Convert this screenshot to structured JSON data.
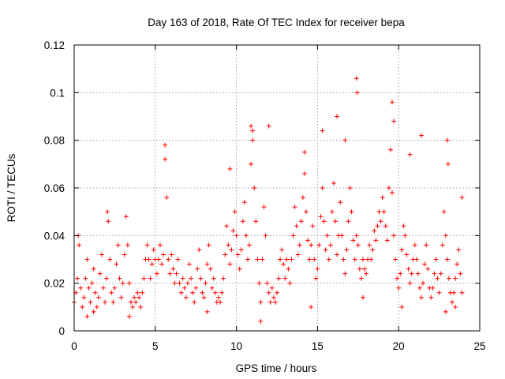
{
  "chart_data": {
    "type": "scatter",
    "title": "Day 163 of 2018, Rate Of TEC Index for receiver bepa",
    "xlabel": "GPS time / hours",
    "ylabel": "ROTI / TECUs",
    "xlim": [
      0,
      25
    ],
    "ylim": [
      0,
      0.12
    ],
    "xticks": [
      0,
      5,
      10,
      15,
      20,
      25
    ],
    "xtick_labels": [
      "0",
      "5",
      "10",
      "15",
      "20",
      "25"
    ],
    "yticks": [
      0,
      0.02,
      0.04,
      0.06,
      0.08,
      0.1,
      0.12
    ],
    "ytick_labels": [
      "0",
      "0.02",
      "0.04",
      "0.06",
      "0.08",
      "0.1",
      "0.12"
    ],
    "grid": true,
    "marker": "+",
    "color": "#ff0000",
    "series": [
      {
        "name": "ROTI",
        "points": [
          [
            0.0,
            0.012
          ],
          [
            0.1,
            0.016
          ],
          [
            0.2,
            0.022
          ],
          [
            0.3,
            0.036
          ],
          [
            0.4,
            0.018
          ],
          [
            0.5,
            0.01
          ],
          [
            0.6,
            0.014
          ],
          [
            0.7,
            0.022
          ],
          [
            0.8,
            0.03
          ],
          [
            0.9,
            0.018
          ],
          [
            1.0,
            0.012
          ],
          [
            1.1,
            0.02
          ],
          [
            1.2,
            0.026
          ],
          [
            1.3,
            0.016
          ],
          [
            1.4,
            0.01
          ],
          [
            1.5,
            0.014
          ],
          [
            1.6,
            0.024
          ],
          [
            1.7,
            0.032
          ],
          [
            1.8,
            0.018
          ],
          [
            1.9,
            0.012
          ],
          [
            2.0,
            0.022
          ],
          [
            2.1,
            0.046
          ],
          [
            2.2,
            0.03
          ],
          [
            2.3,
            0.016
          ],
          [
            2.4,
            0.012
          ],
          [
            2.5,
            0.018
          ],
          [
            2.6,
            0.028
          ],
          [
            2.7,
            0.036
          ],
          [
            2.8,
            0.022
          ],
          [
            2.9,
            0.014
          ],
          [
            3.0,
            0.02
          ],
          [
            3.1,
            0.032
          ],
          [
            3.2,
            0.048
          ],
          [
            3.3,
            0.036
          ],
          [
            3.4,
            0.02
          ],
          [
            3.5,
            0.012
          ],
          [
            3.6,
            0.01
          ],
          [
            3.7,
            0.014
          ],
          [
            3.8,
            0.012
          ],
          [
            3.9,
            0.016
          ],
          [
            4.0,
            0.014
          ],
          [
            4.1,
            0.01
          ],
          [
            4.2,
            0.016
          ],
          [
            4.3,
            0.022
          ],
          [
            4.4,
            0.03
          ],
          [
            4.5,
            0.036
          ],
          [
            4.6,
            0.03
          ],
          [
            4.7,
            0.022
          ],
          [
            4.8,
            0.028
          ],
          [
            4.9,
            0.034
          ],
          [
            5.0,
            0.03
          ],
          [
            5.1,
            0.024
          ],
          [
            5.2,
            0.03
          ],
          [
            5.3,
            0.036
          ],
          [
            5.4,
            0.028
          ],
          [
            5.5,
            0.032
          ],
          [
            5.6,
            0.072
          ],
          [
            5.7,
            0.056
          ],
          [
            5.8,
            0.03
          ],
          [
            5.9,
            0.024
          ],
          [
            6.0,
            0.032
          ],
          [
            6.1,
            0.026
          ],
          [
            6.2,
            0.02
          ],
          [
            6.3,
            0.024
          ],
          [
            6.4,
            0.03
          ],
          [
            6.5,
            0.02
          ],
          [
            6.6,
            0.016
          ],
          [
            6.7,
            0.022
          ],
          [
            6.8,
            0.018
          ],
          [
            6.9,
            0.014
          ],
          [
            7.0,
            0.02
          ],
          [
            7.1,
            0.028
          ],
          [
            7.2,
            0.022
          ],
          [
            7.3,
            0.016
          ],
          [
            7.4,
            0.012
          ],
          [
            7.5,
            0.018
          ],
          [
            7.6,
            0.026
          ],
          [
            7.7,
            0.034
          ],
          [
            7.8,
            0.022
          ],
          [
            7.9,
            0.016
          ],
          [
            8.0,
            0.014
          ],
          [
            8.1,
            0.02
          ],
          [
            8.2,
            0.028
          ],
          [
            8.3,
            0.036
          ],
          [
            8.4,
            0.026
          ],
          [
            8.5,
            0.018
          ],
          [
            8.6,
            0.022
          ],
          [
            8.7,
            0.016
          ],
          [
            8.8,
            0.012
          ],
          [
            8.9,
            0.014
          ],
          [
            9.0,
            0.012
          ],
          [
            9.1,
            0.016
          ],
          [
            9.2,
            0.022
          ],
          [
            9.3,
            0.032
          ],
          [
            9.4,
            0.044
          ],
          [
            9.5,
            0.036
          ],
          [
            9.6,
            0.028
          ],
          [
            9.7,
            0.034
          ],
          [
            9.8,
            0.042
          ],
          [
            9.9,
            0.05
          ],
          [
            10.0,
            0.04
          ],
          [
            10.1,
            0.032
          ],
          [
            10.2,
            0.026
          ],
          [
            10.3,
            0.034
          ],
          [
            10.4,
            0.046
          ],
          [
            10.5,
            0.054
          ],
          [
            10.6,
            0.04
          ],
          [
            10.7,
            0.03
          ],
          [
            10.8,
            0.036
          ],
          [
            10.9,
            0.07
          ],
          [
            11.0,
            0.08
          ],
          [
            11.1,
            0.06
          ],
          [
            11.2,
            0.046
          ],
          [
            11.3,
            0.03
          ],
          [
            11.4,
            0.02
          ],
          [
            11.5,
            0.012
          ],
          [
            11.6,
            0.03
          ],
          [
            11.7,
            0.052
          ],
          [
            11.8,
            0.04
          ],
          [
            11.9,
            0.02
          ],
          [
            12.0,
            0.016
          ],
          [
            12.1,
            0.012
          ],
          [
            12.2,
            0.018
          ],
          [
            12.3,
            0.014
          ],
          [
            12.4,
            0.012
          ],
          [
            12.5,
            0.016
          ],
          [
            12.6,
            0.022
          ],
          [
            12.7,
            0.03
          ],
          [
            12.8,
            0.034
          ],
          [
            12.9,
            0.028
          ],
          [
            13.0,
            0.022
          ],
          [
            13.1,
            0.03
          ],
          [
            13.2,
            0.026
          ],
          [
            13.3,
            0.02
          ],
          [
            13.4,
            0.03
          ],
          [
            13.5,
            0.04
          ],
          [
            13.6,
            0.052
          ],
          [
            13.7,
            0.044
          ],
          [
            13.8,
            0.032
          ],
          [
            13.9,
            0.036
          ],
          [
            14.0,
            0.046
          ],
          [
            14.1,
            0.056
          ],
          [
            14.2,
            0.066
          ],
          [
            14.3,
            0.05
          ],
          [
            14.4,
            0.038
          ],
          [
            14.5,
            0.03
          ],
          [
            14.6,
            0.036
          ],
          [
            14.7,
            0.044
          ],
          [
            14.8,
            0.03
          ],
          [
            14.9,
            0.022
          ],
          [
            15.0,
            0.026
          ],
          [
            15.1,
            0.036
          ],
          [
            15.2,
            0.048
          ],
          [
            15.3,
            0.06
          ],
          [
            15.4,
            0.046
          ],
          [
            15.5,
            0.034
          ],
          [
            15.6,
            0.04
          ],
          [
            15.7,
            0.03
          ],
          [
            15.8,
            0.036
          ],
          [
            15.9,
            0.05
          ],
          [
            16.0,
            0.062
          ],
          [
            16.1,
            0.046
          ],
          [
            16.2,
            0.032
          ],
          [
            16.3,
            0.04
          ],
          [
            16.4,
            0.054
          ],
          [
            16.5,
            0.04
          ],
          [
            16.6,
            0.03
          ],
          [
            16.7,
            0.024
          ],
          [
            16.8,
            0.034
          ],
          [
            16.9,
            0.046
          ],
          [
            17.0,
            0.06
          ],
          [
            17.1,
            0.05
          ],
          [
            17.2,
            0.038
          ],
          [
            17.3,
            0.03
          ],
          [
            17.4,
            0.04
          ],
          [
            17.5,
            0.036
          ],
          [
            17.6,
            0.026
          ],
          [
            17.7,
            0.022
          ],
          [
            17.8,
            0.03
          ],
          [
            17.9,
            0.026
          ],
          [
            18.0,
            0.024
          ],
          [
            18.1,
            0.03
          ],
          [
            18.2,
            0.036
          ],
          [
            18.3,
            0.03
          ],
          [
            18.4,
            0.034
          ],
          [
            18.5,
            0.042
          ],
          [
            18.6,
            0.038
          ],
          [
            18.7,
            0.044
          ],
          [
            18.8,
            0.05
          ],
          [
            18.9,
            0.046
          ],
          [
            19.0,
            0.056
          ],
          [
            19.1,
            0.05
          ],
          [
            19.2,
            0.044
          ],
          [
            19.3,
            0.038
          ],
          [
            19.4,
            0.06
          ],
          [
            19.5,
            0.076
          ],
          [
            19.6,
            0.058
          ],
          [
            19.7,
            0.04
          ],
          [
            19.8,
            0.03
          ],
          [
            19.9,
            0.022
          ],
          [
            20.0,
            0.018
          ],
          [
            20.1,
            0.024
          ],
          [
            20.2,
            0.034
          ],
          [
            20.3,
            0.044
          ],
          [
            20.4,
            0.04
          ],
          [
            20.5,
            0.032
          ],
          [
            20.6,
            0.026
          ],
          [
            20.7,
            0.02
          ],
          [
            20.8,
            0.024
          ],
          [
            20.9,
            0.03
          ],
          [
            21.0,
            0.036
          ],
          [
            21.1,
            0.03
          ],
          [
            21.2,
            0.024
          ],
          [
            21.3,
            0.018
          ],
          [
            21.4,
            0.014
          ],
          [
            21.5,
            0.02
          ],
          [
            21.6,
            0.028
          ],
          [
            21.7,
            0.036
          ],
          [
            21.8,
            0.026
          ],
          [
            21.9,
            0.018
          ],
          [
            22.0,
            0.014
          ],
          [
            22.1,
            0.018
          ],
          [
            22.2,
            0.024
          ],
          [
            22.3,
            0.03
          ],
          [
            22.4,
            0.022
          ],
          [
            22.5,
            0.016
          ],
          [
            22.6,
            0.024
          ],
          [
            22.7,
            0.036
          ],
          [
            22.8,
            0.05
          ],
          [
            22.9,
            0.04
          ],
          [
            23.0,
            0.03
          ],
          [
            23.1,
            0.022
          ],
          [
            23.2,
            0.016
          ],
          [
            23.3,
            0.012
          ],
          [
            23.4,
            0.016
          ],
          [
            23.5,
            0.022
          ],
          [
            23.6,
            0.028
          ],
          [
            23.7,
            0.034
          ],
          [
            23.8,
            0.024
          ],
          [
            23.9,
            0.016
          ],
          [
            0.25,
            0.04
          ],
          [
            2.05,
            0.05
          ],
          [
            5.6,
            0.078
          ],
          [
            11.0,
            0.084
          ],
          [
            15.3,
            0.084
          ],
          [
            16.2,
            0.09
          ],
          [
            17.4,
            0.106
          ],
          [
            17.45,
            0.1
          ],
          [
            19.6,
            0.096
          ],
          [
            19.7,
            0.088
          ],
          [
            21.4,
            0.082
          ],
          [
            23.0,
            0.08
          ],
          [
            23.05,
            0.07
          ],
          [
            9.6,
            0.068
          ],
          [
            10.9,
            0.086
          ],
          [
            14.2,
            0.075
          ],
          [
            16.7,
            0.08
          ],
          [
            20.7,
            0.074
          ],
          [
            23.9,
            0.056
          ],
          [
            0.8,
            0.006
          ],
          [
            1.2,
            0.008
          ],
          [
            3.4,
            0.006
          ],
          [
            8.2,
            0.008
          ],
          [
            11.5,
            0.004
          ],
          [
            14.6,
            0.01
          ],
          [
            17.8,
            0.014
          ],
          [
            20.2,
            0.01
          ],
          [
            22.9,
            0.008
          ],
          [
            23.5,
            0.01
          ],
          [
            12.0,
            0.086
          ]
        ]
      }
    ]
  }
}
